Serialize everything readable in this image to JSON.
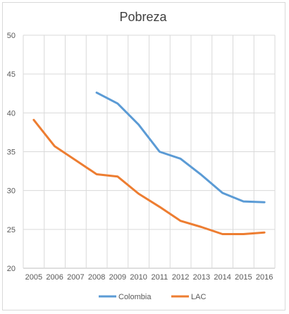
{
  "chart_data": {
    "type": "line",
    "title": "Pobreza",
    "xlabel": "",
    "ylabel": "",
    "x": [
      "2005",
      "2006",
      "2007",
      "2008",
      "2009",
      "2010",
      "2011",
      "2012",
      "2013",
      "2014",
      "2015",
      "2016"
    ],
    "ylim": [
      20,
      50
    ],
    "yticks": [
      20,
      25,
      30,
      35,
      40,
      45,
      50
    ],
    "grid": true,
    "legend_position": "bottom",
    "series": [
      {
        "name": "Colombia",
        "color": "#5b9bd5",
        "values": [
          null,
          null,
          null,
          42.6,
          41.2,
          38.5,
          35.0,
          34.1,
          32.0,
          29.7,
          28.6,
          28.5
        ]
      },
      {
        "name": "LAC",
        "color": "#ed7d31",
        "values": [
          39.1,
          35.7,
          33.9,
          32.1,
          31.8,
          29.6,
          27.9,
          26.1,
          25.3,
          24.4,
          24.4,
          24.6
        ]
      }
    ]
  }
}
